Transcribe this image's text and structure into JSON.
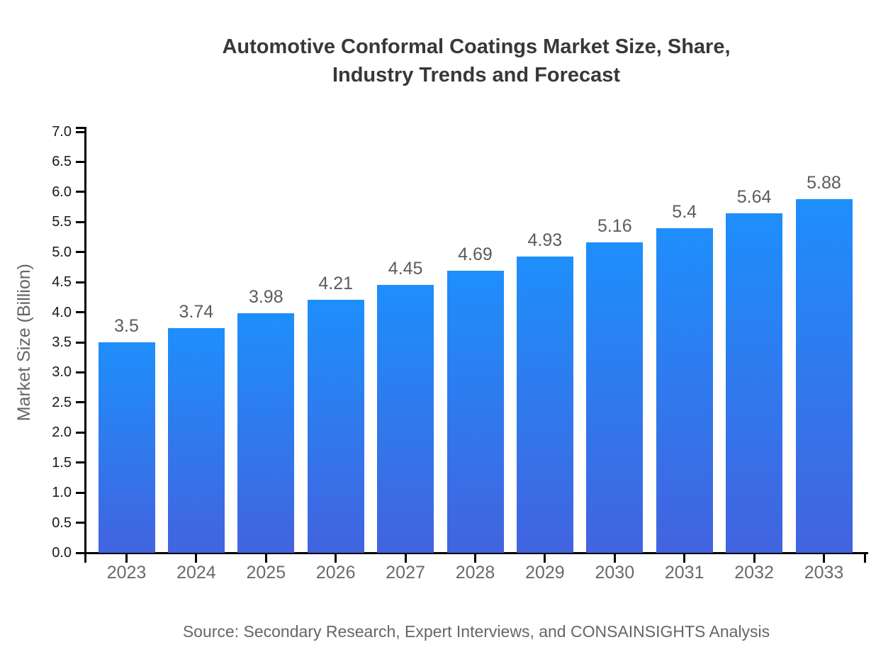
{
  "title": {
    "lines": [
      "Automotive Conformal Coatings Market Size, Share,",
      "Industry Trends and Forecast"
    ]
  },
  "source": "Source: Secondary Research, Expert Interviews, and CONSAINSIGHTS Analysis",
  "colors": {
    "bar_gradient_top": "#1e8ffb",
    "bar_gradient_bottom": "#4263df",
    "axis": "#000000",
    "title_text": "#383838",
    "y_tick_text": "#191919",
    "x_tick_text": "#6a6a6a",
    "value_label_text": "#5c5c5c",
    "muted_text": "#666666",
    "background": "#ffffff"
  },
  "chart_data": {
    "type": "bar",
    "title": "Automotive Conformal Coatings Market Size, Share, Industry Trends and Forecast",
    "categories": [
      "2023",
      "2024",
      "2025",
      "2026",
      "2027",
      "2028",
      "2029",
      "2030",
      "2031",
      "2032",
      "2033"
    ],
    "values": [
      3.5,
      3.74,
      3.98,
      4.21,
      4.45,
      4.69,
      4.93,
      5.16,
      5.4,
      5.64,
      5.88
    ],
    "value_labels": [
      "3.5",
      "3.74",
      "3.98",
      "4.21",
      "4.45",
      "4.69",
      "4.93",
      "5.16",
      "5.4",
      "5.64",
      "5.88"
    ],
    "xlabel": "",
    "ylabel": "Market Size (Billion)",
    "ylim": [
      0.0,
      7.0
    ],
    "y_tick_step": 0.5,
    "y_ticks": [
      "0.0",
      "0.5",
      "1.0",
      "1.5",
      "2.0",
      "2.5",
      "3.0",
      "3.5",
      "4.0",
      "4.5",
      "5.0",
      "5.5",
      "6.0",
      "6.5",
      "7.0"
    ],
    "grid": false,
    "legend_position": "none",
    "source": "Source: Secondary Research, Expert Interviews, and CONSAINSIGHTS Analysis"
  }
}
